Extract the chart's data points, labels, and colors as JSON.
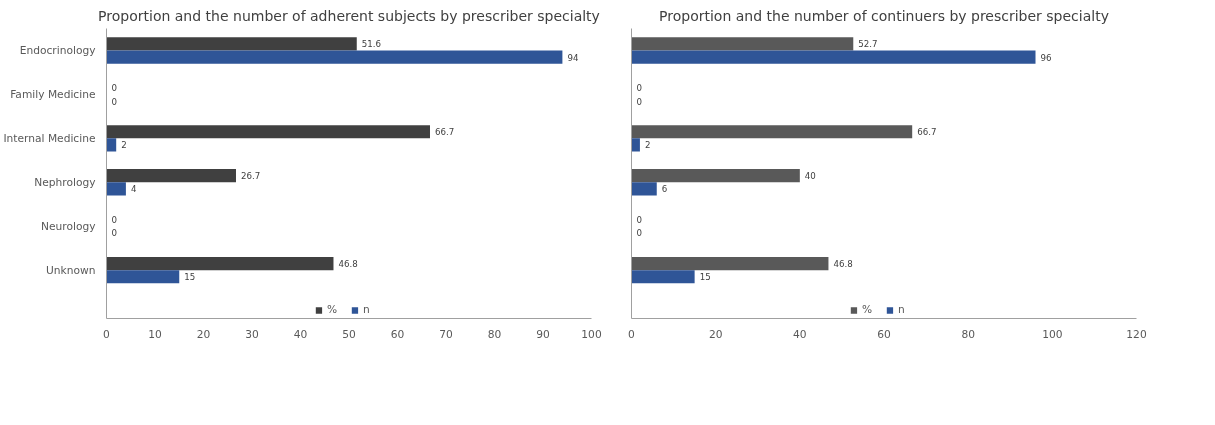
{
  "chart_data": [
    {
      "type": "bar",
      "orientation": "horizontal",
      "title": "Proportion and the number of adherent subjects by prescriber specialty",
      "categories": [
        "Endocrinology",
        "Family Medicine",
        "Internal Medicine",
        "Nephrology",
        "Neurology",
        "Unknown"
      ],
      "series": [
        {
          "name": "%",
          "color": "#404040",
          "values": [
            51.6,
            0,
            66.7,
            26.7,
            0,
            46.8
          ]
        },
        {
          "name": "n",
          "color": "#2f5597",
          "values": [
            94,
            0,
            2,
            4,
            0,
            15
          ]
        }
      ],
      "xlim": [
        0,
        100
      ],
      "xticks": [
        0,
        10,
        20,
        30,
        40,
        50,
        60,
        70,
        80,
        90,
        100
      ],
      "data_labels": true,
      "legend": "bottom",
      "grid": false
    },
    {
      "type": "bar",
      "orientation": "horizontal",
      "title": "Proportion and the number of continuers by prescriber specialty",
      "categories": [
        null,
        null,
        null,
        null,
        null,
        null
      ],
      "series": [
        {
          "name": "%",
          "color": "#595959",
          "values": [
            52.7,
            0,
            66.7,
            40,
            0,
            46.8
          ]
        },
        {
          "name": "n",
          "color": "#2f5597",
          "values": [
            96,
            0,
            2,
            6,
            0,
            15
          ]
        }
      ],
      "xlim": [
        0,
        120
      ],
      "xticks": [
        0,
        20,
        40,
        60,
        80,
        100,
        120
      ],
      "data_labels": true,
      "legend": "bottom",
      "grid": false
    }
  ]
}
